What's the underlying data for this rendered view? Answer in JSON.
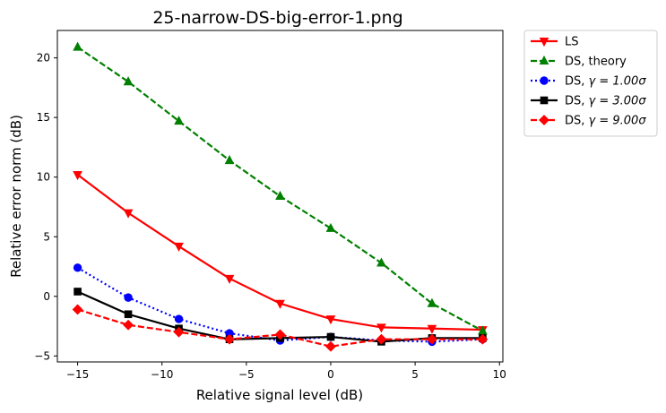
{
  "chart_data": {
    "type": "line",
    "title": "25-narrow-DS-big-error-1.png",
    "xlabel": "Relative signal level (dB)",
    "ylabel": "Relative error norm (dB)",
    "xlim": [
      -16.2,
      10.2
    ],
    "ylim": [
      -5.5,
      22.3
    ],
    "xticks": [
      -15,
      -10,
      -5,
      0,
      5,
      10
    ],
    "yticks": [
      -5,
      0,
      5,
      10,
      15,
      20
    ],
    "x": [
      -15,
      -12,
      -9,
      -6,
      -3,
      0,
      3,
      6,
      9
    ],
    "legend_location": "outside-upper-right",
    "series": [
      {
        "name": "LS",
        "legend_label": "LS",
        "color": "#ff0000",
        "dash": "solid",
        "marker": "triangle-down",
        "values": [
          10.2,
          7.0,
          4.2,
          1.5,
          -0.6,
          -1.9,
          -2.6,
          -2.7,
          -2.8
        ]
      },
      {
        "name": "DS, theory",
        "legend_label": "DS, theory",
        "color": "#008000",
        "dash": "dashed",
        "marker": "triangle-up",
        "values": [
          20.9,
          18.0,
          14.7,
          11.4,
          8.4,
          5.7,
          2.8,
          -0.6,
          -2.9
        ]
      },
      {
        "name": "DS, gamma = 1.00 sigma",
        "legend_prefix": "DS, ",
        "legend_math": "γ = 1.00σ",
        "color": "#0000ff",
        "dash": "dotted",
        "marker": "circle",
        "values": [
          2.4,
          -0.1,
          -1.9,
          -3.1,
          -3.7,
          -3.4,
          -3.7,
          -3.8,
          -3.6
        ]
      },
      {
        "name": "DS, gamma = 3.00 sigma",
        "legend_prefix": "DS, ",
        "legend_math": "γ = 3.00σ",
        "color": "#000000",
        "dash": "solid",
        "marker": "square",
        "values": [
          0.4,
          -1.5,
          -2.7,
          -3.6,
          -3.5,
          -3.4,
          -3.8,
          -3.5,
          -3.5
        ]
      },
      {
        "name": "DS, gamma = 9.00 sigma",
        "legend_prefix": "DS, ",
        "legend_math": "γ = 9.00σ",
        "color": "#ff0000",
        "dash": "dashed",
        "marker": "diamond",
        "values": [
          -1.1,
          -2.4,
          -3.0,
          -3.6,
          -3.2,
          -4.2,
          -3.6,
          -3.6,
          -3.6
        ]
      }
    ]
  }
}
